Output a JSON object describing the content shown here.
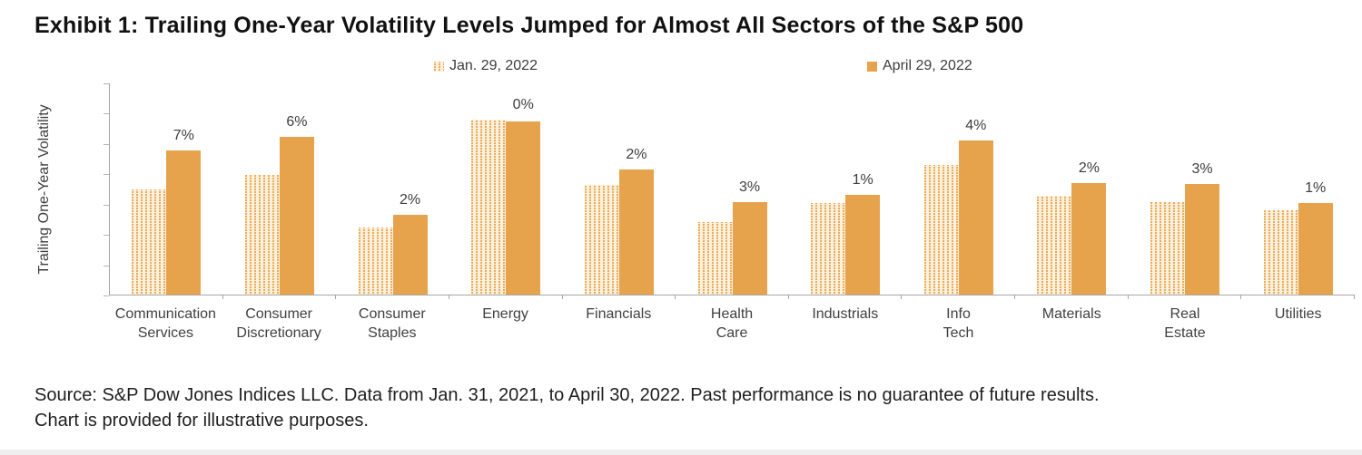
{
  "title": "Exhibit 1: Trailing One-Year Volatility Levels Jumped for Almost All Sectors of the S&P 500",
  "legend": [
    {
      "label": "Jan. 29, 2022",
      "swatch": "pattern-orange"
    },
    {
      "label": "April 29, 2022",
      "swatch": "solid-orange"
    }
  ],
  "y_axis": {
    "label": "Trailing One-Year Volatility",
    "ticks": [
      "35%",
      "30%",
      "25%",
      "20%",
      "15%",
      "10%",
      "5%",
      "0%"
    ]
  },
  "source": {
    "line1": "Source: S&P Dow Jones Indices LLC. Data from Jan. 31, 2021, to April 30, 2022. Past performance is no guarantee of future results.",
    "line2": "Chart is provided for illustrative purposes."
  },
  "colors": {
    "solid_bar": "#E7A24C",
    "pattern_bar_base": "#FCF1DE",
    "pattern_bar_stripe": "#EBAB58",
    "axis": "#A6A6A6",
    "tick_text": "#595959",
    "title_text": "#111111"
  },
  "chart_data": {
    "type": "bar",
    "categories": [
      "Communication\nServices",
      "Consumer\nDiscretionary",
      "Consumer\nStaples",
      "Energy",
      "Financials",
      "Health\nCare",
      "Industrials",
      "Info\nTech",
      "Materials",
      "Real\nEstate",
      "Utilities"
    ],
    "series": [
      {
        "name": "Jan. 29, 2022",
        "values": [
          17.3,
          19.8,
          11.1,
          28.8,
          18.1,
          12.0,
          15.1,
          21.4,
          16.3,
          15.3,
          13.9
        ]
      },
      {
        "name": "April 29, 2022",
        "values": [
          23.8,
          26.0,
          13.2,
          28.6,
          20.6,
          15.3,
          16.5,
          25.4,
          18.4,
          18.3,
          15.1
        ]
      }
    ],
    "diff_labels": [
      "7%",
      "6%",
      "2%",
      "0%",
      "2%",
      "3%",
      "1%",
      "4%",
      "2%",
      "3%",
      "1%"
    ],
    "title": "Exhibit 1: Trailing One-Year Volatility Levels Jumped for Almost All Sectors of the S&P 500",
    "xlabel": "",
    "ylabel": "Trailing One-Year Volatility",
    "ylim": [
      0,
      35
    ],
    "ytick_step": 5,
    "grid": false,
    "legend_position": "top"
  }
}
